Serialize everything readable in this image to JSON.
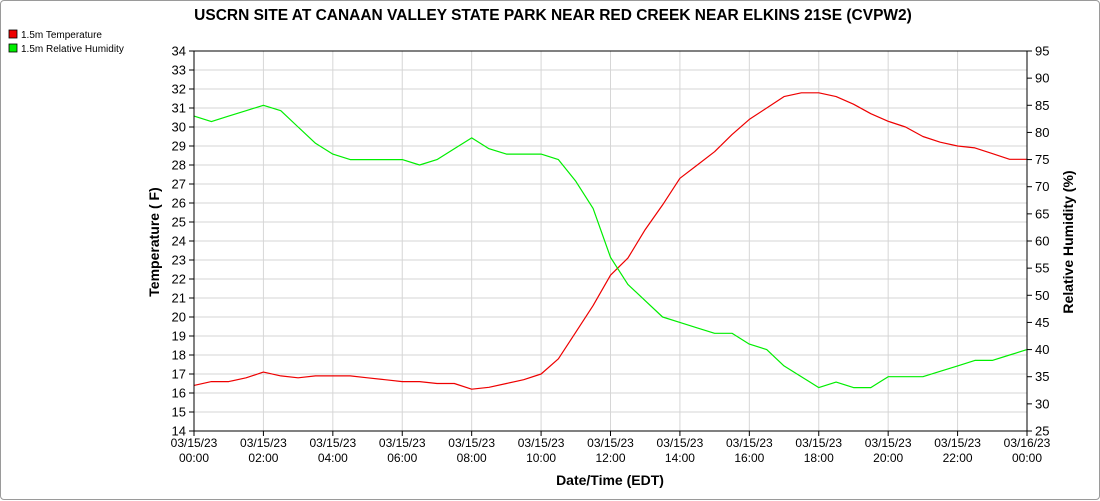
{
  "chart_data": {
    "type": "line",
    "title": "USCRN SITE AT CANAAN VALLEY STATE PARK NEAR RED CREEK NEAR ELKINS 21SE (CVPW2)",
    "xlabel": "Date/Time (EDT)",
    "ylabel_left": "Temperature ( F)",
    "ylabel_right": "Relative Humidity (%)",
    "ylim_left": [
      14,
      34
    ],
    "ylim_right": [
      25,
      95
    ],
    "yticks_left": [
      "14",
      "15",
      "16",
      "17",
      "18",
      "19",
      "20",
      "21",
      "22",
      "23",
      "24",
      "25",
      "26",
      "27",
      "28",
      "29",
      "30",
      "31",
      "32",
      "33",
      "34"
    ],
    "yticks_right": [
      "25",
      "30",
      "35",
      "40",
      "45",
      "50",
      "55",
      "60",
      "65",
      "70",
      "75",
      "80",
      "85",
      "90",
      "95"
    ],
    "xticks": [
      {
        "date": "03/15/23",
        "time": "00:00"
      },
      {
        "date": "03/15/23",
        "time": "02:00"
      },
      {
        "date": "03/15/23",
        "time": "04:00"
      },
      {
        "date": "03/15/23",
        "time": "06:00"
      },
      {
        "date": "03/15/23",
        "time": "08:00"
      },
      {
        "date": "03/15/23",
        "time": "10:00"
      },
      {
        "date": "03/15/23",
        "time": "12:00"
      },
      {
        "date": "03/15/23",
        "time": "14:00"
      },
      {
        "date": "03/15/23",
        "time": "16:00"
      },
      {
        "date": "03/15/23",
        "time": "18:00"
      },
      {
        "date": "03/15/23",
        "time": "20:00"
      },
      {
        "date": "03/15/23",
        "time": "22:00"
      },
      {
        "date": "03/16/23",
        "time": "00:00"
      }
    ],
    "grid": true,
    "legend_position": "top-left",
    "x_hours": [
      0,
      0.5,
      1,
      1.5,
      2,
      2.5,
      3,
      3.5,
      4,
      4.5,
      5,
      5.5,
      6,
      6.5,
      7,
      7.5,
      8,
      8.5,
      9,
      9.5,
      10,
      10.5,
      11,
      11.5,
      12,
      12.5,
      13,
      13.5,
      14,
      14.5,
      15,
      15.5,
      16,
      16.5,
      17,
      17.5,
      18,
      18.5,
      19,
      19.5,
      20,
      20.5,
      21,
      21.5,
      22,
      22.5,
      23,
      23.5,
      24
    ],
    "series": [
      {
        "name": "1.5m Temperature",
        "color": "#ee0000",
        "axis": "left",
        "values": [
          16.4,
          16.6,
          16.6,
          16.8,
          17.1,
          16.9,
          16.8,
          16.9,
          16.9,
          16.9,
          16.8,
          16.7,
          16.6,
          16.6,
          16.5,
          16.5,
          16.2,
          16.3,
          16.5,
          16.7,
          17.0,
          17.8,
          19.2,
          20.6,
          22.2,
          23.1,
          24.6,
          25.9,
          27.3,
          28.0,
          28.7,
          29.6,
          30.4,
          31.0,
          31.6,
          31.8,
          31.8,
          31.6,
          31.2,
          30.7,
          30.3,
          30.0,
          29.5,
          29.2,
          29.0,
          28.9,
          28.6,
          28.3,
          28.3
        ]
      },
      {
        "name": "1.5m Relative Humidity",
        "color": "#00ee00",
        "axis": "right",
        "values": [
          83,
          82,
          83,
          84,
          85,
          84,
          81,
          78,
          76,
          75,
          75,
          75,
          75,
          74,
          75,
          77,
          79,
          77,
          76,
          76,
          76,
          75,
          71,
          66,
          57,
          52,
          49,
          46,
          45,
          44,
          43,
          43,
          41,
          40,
          37,
          35,
          33,
          34,
          33,
          33,
          35,
          35,
          35,
          36,
          37,
          38,
          38,
          39,
          40
        ]
      }
    ]
  }
}
